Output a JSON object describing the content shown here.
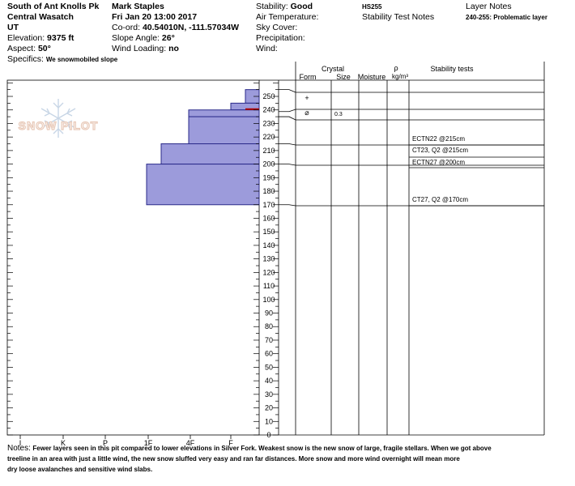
{
  "header": {
    "location": "South of Ant Knolls Pk",
    "range": "Central Wasatch",
    "state": "UT",
    "elevation_label": "Elevation:",
    "elevation": "9375 ft",
    "aspect_label": "Aspect:",
    "aspect": "50°",
    "specifics_label": "Specifics:",
    "specifics": "We snowmobiled slope",
    "observer": "Mark Staples",
    "datetime": "Fri Jan 20 13:00 2017",
    "coord_label": "Co-ord:",
    "coord": "40.54010N, -111.57034W",
    "slope_label": "Slope Angle:",
    "slope": "26°",
    "wind_loading_label": "Wind Loading:",
    "wind_loading": "no",
    "stability_label": "Stability:",
    "stability": "Good",
    "air_temp_label": "Air Temperature:",
    "sky_cover_label": "Sky Cover:",
    "precip_label": "Precipitation:",
    "wind_label": "Wind:",
    "hs": "HS255",
    "stability_notes_label": "Stability Test Notes",
    "layer_notes_label": "Layer Notes",
    "layer_note": "240-255: Problematic layer"
  },
  "logo": {
    "text": "SNOW PILOT"
  },
  "columns": {
    "crystal": "Crystal",
    "form": "Form",
    "size": "Size",
    "moisture": "Moisture",
    "rho": "ρ",
    "density_unit": "kg/m³",
    "stability_tests": "Stability tests"
  },
  "hardness_ticks": [
    "I",
    "K",
    "P",
    "1F",
    "4F",
    "F"
  ],
  "depth_ticks": [
    250,
    240,
    230,
    220,
    210,
    200,
    190,
    180,
    170,
    160,
    150,
    140,
    130,
    120,
    110,
    100,
    90,
    80,
    70,
    60,
    50,
    40,
    30,
    20,
    10,
    0
  ],
  "layers": [
    {
      "top": 255,
      "bottom": 245,
      "hardness": "F-"
    },
    {
      "top": 245,
      "bottom": 240,
      "hardness": "F"
    },
    {
      "top": 240,
      "bottom": 235,
      "hardness": "4F+"
    },
    {
      "top": 235,
      "bottom": 215,
      "hardness": "4F"
    },
    {
      "top": 215,
      "bottom": 200,
      "hardness": "1F+"
    },
    {
      "top": 200,
      "bottom": 170,
      "hardness": "1F"
    }
  ],
  "crystal_rows": [
    {
      "form_symbol": "+",
      "size": ""
    },
    {
      "form_symbol": "⌀",
      "size": "0.3"
    }
  ],
  "stability_tests": [
    {
      "label": "ECTN22 @215cm",
      "depth": 215
    },
    {
      "label": "CT23, Q2 @215cm",
      "depth": 210
    },
    {
      "label": "ECTN27 @200cm",
      "depth": 200
    },
    {
      "label": "CT27, Q2 @170cm",
      "depth": 170
    }
  ],
  "notes": {
    "label": "Notes:",
    "line1": "Fewer layers seen in this pit compared to lower elevations in Silver Fork. Weakest snow is the new snow of large, fragile stellars. When we got above",
    "line2": "treeline in an area with just a little wind, the new snow sluffed very easy and ran far distances. More snow and more wind overnight will mean more",
    "line3": "dry loose avalanches and sensitive wind slabs."
  },
  "colors": {
    "layer_fill": "#9c9bdb",
    "layer_stroke": "#2a2a8a",
    "problem_line": "#b00000",
    "logo": "#e8c9b8"
  }
}
